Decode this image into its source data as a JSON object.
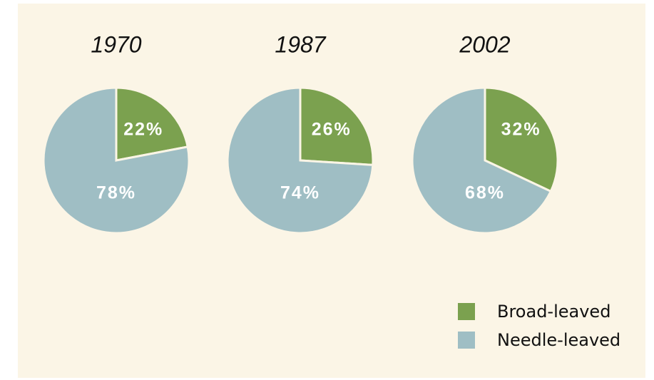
{
  "chart_data": [
    {
      "type": "pie",
      "title": "1970",
      "categories": [
        "Broad-leaved",
        "Needle-leaved"
      ],
      "values": [
        22,
        78
      ],
      "value_labels": [
        "22%",
        "78%"
      ],
      "colors": [
        "#7ba14f",
        "#9fbec4"
      ]
    },
    {
      "type": "pie",
      "title": "1987",
      "categories": [
        "Broad-leaved",
        "Needle-leaved"
      ],
      "values": [
        26,
        74
      ],
      "value_labels": [
        "26%",
        "74%"
      ],
      "colors": [
        "#7ba14f",
        "#9fbec4"
      ]
    },
    {
      "type": "pie",
      "title": "2002",
      "categories": [
        "Broad-leaved",
        "Needle-leaved"
      ],
      "values": [
        32,
        68
      ],
      "value_labels": [
        "32%",
        "68%"
      ],
      "colors": [
        "#7ba14f",
        "#9fbec4"
      ]
    }
  ]
}
